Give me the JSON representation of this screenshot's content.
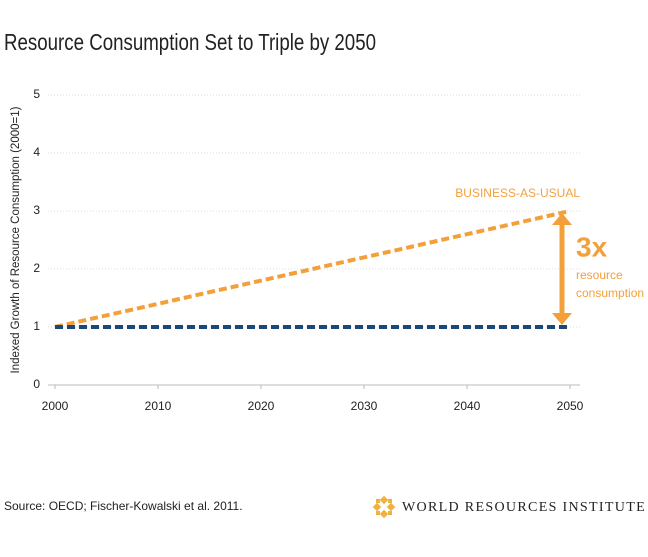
{
  "chart_data": {
    "type": "line",
    "title": "Resource Consumption Set to Triple by 2050",
    "y_label": "Indexed Growth of Resource Consumption (2000=1)",
    "x": [
      2000,
      2050
    ],
    "series": [
      {
        "name": "BUSINESS-AS-USUAL",
        "color": "#f4a03a",
        "values": [
          1,
          3
        ]
      },
      {
        "color": "#1b4876",
        "values": [
          1,
          1
        ]
      }
    ],
    "xlim": [
      2000,
      2050
    ],
    "xticks": [
      2000,
      2010,
      2020,
      2030,
      2040,
      2050
    ],
    "ylim": [
      0,
      5
    ],
    "yticks": [
      0,
      1,
      2,
      3,
      4,
      5
    ],
    "grid": true,
    "annotations": {
      "multiple": "3x",
      "note": [
        "resource",
        "consumption"
      ]
    },
    "source": "Source: OECD; Fischer-Kowalski et al. 2011.",
    "logo": "WORLD RESOURCES INSTITUTE"
  }
}
